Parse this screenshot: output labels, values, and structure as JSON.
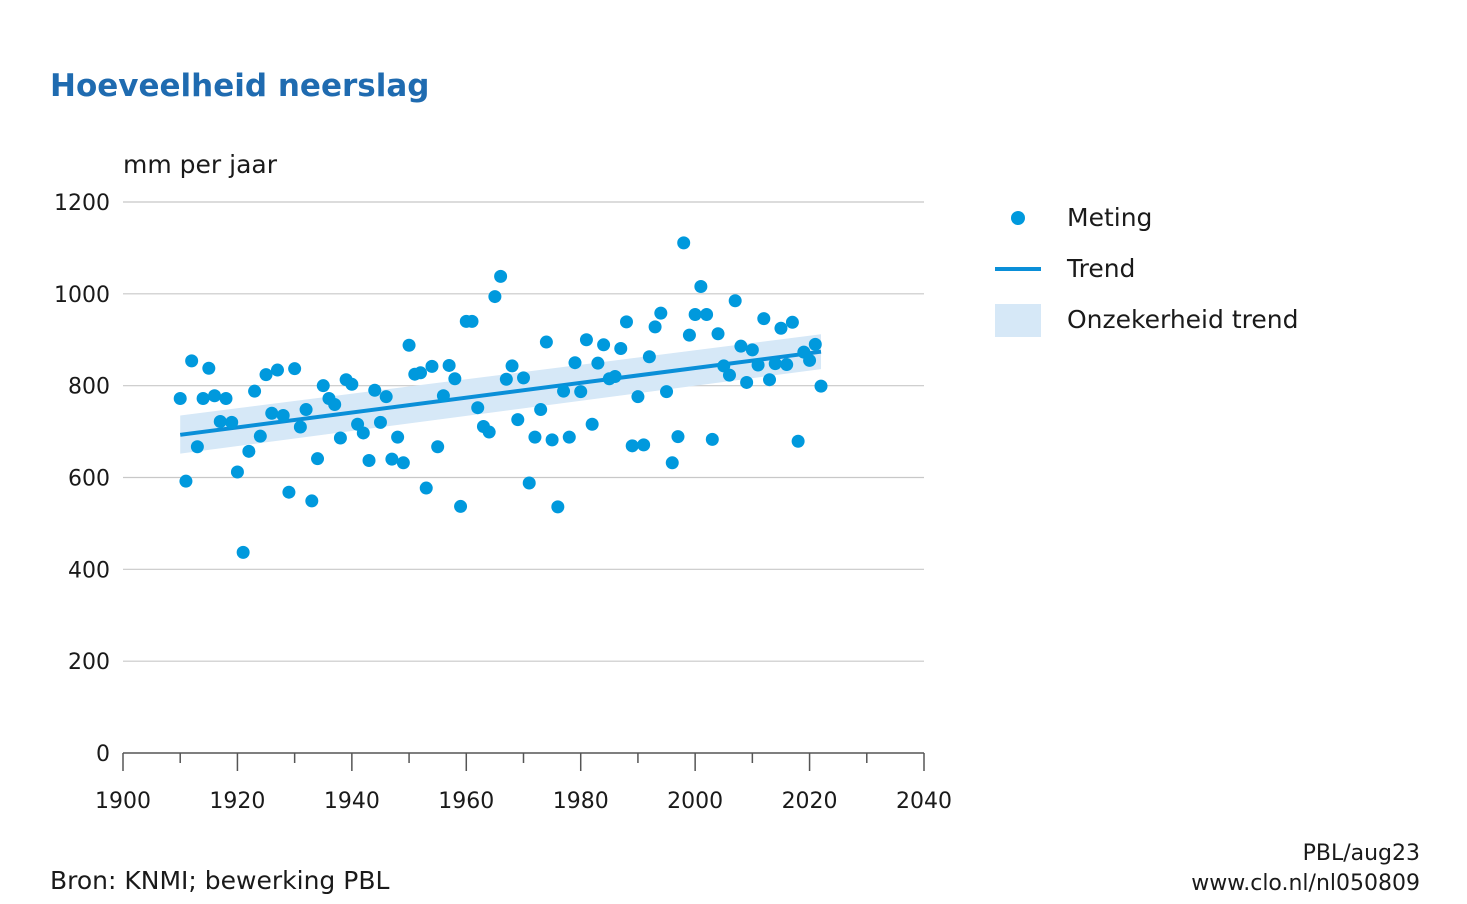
{
  "title": "Hoeveelheid neerslag",
  "colors": {
    "title": "#1f6bb0",
    "point": "#0099dd",
    "trend": "#0a8fd8",
    "band": "#d6e8f7",
    "grid": "#c8c8c8",
    "axis": "#555555"
  },
  "legend": {
    "meting": "Meting",
    "trend": "Trend",
    "band": "Onzekerheid trend"
  },
  "footer": {
    "source": "Bron: KNMI; bewerking PBL",
    "date": "PBL/aug23",
    "url": "www.clo.nl/nl050809"
  },
  "chart_data": {
    "type": "scatter",
    "title": "Hoeveelheid neerslag",
    "xlabel": "",
    "ylabel": "mm per jaar",
    "xlim": [
      1900,
      2040
    ],
    "ylim": [
      0,
      1200
    ],
    "x_ticks": [
      1900,
      1920,
      1940,
      1960,
      1980,
      2000,
      2020,
      2040
    ],
    "y_ticks": [
      0,
      200,
      400,
      600,
      800,
      1000,
      1200
    ],
    "grid": true,
    "legend_position": "right",
    "series": [
      {
        "name": "Meting",
        "kind": "points",
        "points": [
          [
            1910,
            772
          ],
          [
            1911,
            592
          ],
          [
            1912,
            854
          ],
          [
            1913,
            667
          ],
          [
            1914,
            772
          ],
          [
            1915,
            838
          ],
          [
            1916,
            778
          ],
          [
            1917,
            722
          ],
          [
            1918,
            772
          ],
          [
            1919,
            720
          ],
          [
            1920,
            612
          ],
          [
            1921,
            437
          ],
          [
            1922,
            657
          ],
          [
            1923,
            788
          ],
          [
            1924,
            690
          ],
          [
            1925,
            824
          ],
          [
            1926,
            740
          ],
          [
            1927,
            834
          ],
          [
            1928,
            735
          ],
          [
            1929,
            568
          ],
          [
            1930,
            837
          ],
          [
            1931,
            710
          ],
          [
            1932,
            748
          ],
          [
            1933,
            549
          ],
          [
            1934,
            641
          ],
          [
            1935,
            800
          ],
          [
            1936,
            772
          ],
          [
            1937,
            759
          ],
          [
            1938,
            686
          ],
          [
            1939,
            813
          ],
          [
            1940,
            803
          ],
          [
            1941,
            716
          ],
          [
            1942,
            697
          ],
          [
            1943,
            637
          ],
          [
            1944,
            790
          ],
          [
            1945,
            720
          ],
          [
            1946,
            776
          ],
          [
            1947,
            640
          ],
          [
            1948,
            688
          ],
          [
            1949,
            632
          ],
          [
            1950,
            888
          ],
          [
            1951,
            825
          ],
          [
            1952,
            828
          ],
          [
            1953,
            577
          ],
          [
            1954,
            842
          ],
          [
            1955,
            667
          ],
          [
            1956,
            778
          ],
          [
            1957,
            844
          ],
          [
            1958,
            815
          ],
          [
            1959,
            537
          ],
          [
            1960,
            940
          ],
          [
            1961,
            940
          ],
          [
            1962,
            752
          ],
          [
            1963,
            711
          ],
          [
            1964,
            699
          ],
          [
            1965,
            994
          ],
          [
            1966,
            1038
          ],
          [
            1967,
            814
          ],
          [
            1968,
            843
          ],
          [
            1969,
            726
          ],
          [
            1970,
            817
          ],
          [
            1971,
            588
          ],
          [
            1972,
            688
          ],
          [
            1973,
            748
          ],
          [
            1974,
            895
          ],
          [
            1975,
            682
          ],
          [
            1976,
            536
          ],
          [
            1977,
            788
          ],
          [
            1978,
            688
          ],
          [
            1979,
            850
          ],
          [
            1980,
            787
          ],
          [
            1981,
            900
          ],
          [
            1982,
            716
          ],
          [
            1983,
            849
          ],
          [
            1984,
            889
          ],
          [
            1985,
            815
          ],
          [
            1986,
            820
          ],
          [
            1987,
            881
          ],
          [
            1988,
            939
          ],
          [
            1989,
            669
          ],
          [
            1990,
            776
          ],
          [
            1991,
            671
          ],
          [
            1992,
            863
          ],
          [
            1993,
            928
          ],
          [
            1994,
            958
          ],
          [
            1995,
            787
          ],
          [
            1996,
            632
          ],
          [
            1997,
            689
          ],
          [
            1998,
            1111
          ],
          [
            1999,
            910
          ],
          [
            2000,
            955
          ],
          [
            2001,
            1016
          ],
          [
            2002,
            955
          ],
          [
            2003,
            683
          ],
          [
            2004,
            913
          ],
          [
            2005,
            843
          ],
          [
            2006,
            823
          ],
          [
            2007,
            985
          ],
          [
            2008,
            886
          ],
          [
            2009,
            807
          ],
          [
            2010,
            878
          ],
          [
            2011,
            845
          ],
          [
            2012,
            946
          ],
          [
            2013,
            813
          ],
          [
            2014,
            848
          ],
          [
            2015,
            925
          ],
          [
            2016,
            846
          ],
          [
            2017,
            938
          ],
          [
            2018,
            679
          ],
          [
            2019,
            873
          ],
          [
            2020,
            855
          ],
          [
            2021,
            890
          ],
          [
            2022,
            799
          ]
        ]
      },
      {
        "name": "Trend",
        "kind": "line",
        "points": [
          [
            1910,
            693
          ],
          [
            2022,
            874
          ]
        ]
      },
      {
        "name": "Onzekerheid trend",
        "kind": "band",
        "x": [
          1910,
          2022
        ],
        "lower": [
          652,
          836
        ],
        "upper": [
          735,
          912
        ]
      }
    ]
  }
}
